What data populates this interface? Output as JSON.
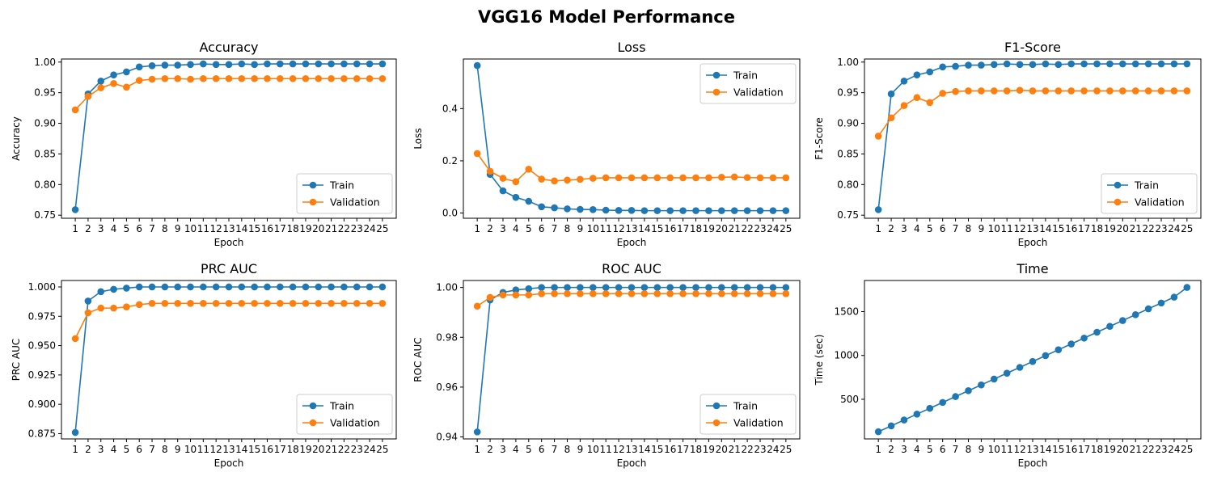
{
  "title": "VGG16 Model Performance",
  "colors": {
    "train": "#1f77b4",
    "validation": "#ff7f0e",
    "axis": "#000000"
  },
  "chart_data": [
    {
      "type": "line",
      "title": "Accuracy",
      "xlabel": "Epoch",
      "ylabel": "Accuracy",
      "x": [
        1,
        2,
        3,
        4,
        5,
        6,
        7,
        8,
        9,
        10,
        11,
        12,
        13,
        14,
        15,
        16,
        17,
        18,
        19,
        20,
        21,
        22,
        23,
        24,
        25
      ],
      "ylim": [
        0.745,
        1.005
      ],
      "yticks": [
        "0.75",
        "0.80",
        "0.85",
        "0.90",
        "0.95",
        "1.00"
      ],
      "legend": "lower-right",
      "series": [
        {
          "name": "Train",
          "color": "#1f77b4",
          "values": [
            0.759,
            0.948,
            0.969,
            0.979,
            0.984,
            0.992,
            0.994,
            0.995,
            0.995,
            0.996,
            0.997,
            0.996,
            0.996,
            0.997,
            0.996,
            0.997,
            0.997,
            0.997,
            0.997,
            0.997,
            0.997,
            0.997,
            0.997,
            0.997,
            0.997
          ]
        },
        {
          "name": "Validation",
          "color": "#ff7f0e",
          "values": [
            0.922,
            0.944,
            0.958,
            0.965,
            0.959,
            0.97,
            0.972,
            0.973,
            0.973,
            0.972,
            0.973,
            0.973,
            0.973,
            0.973,
            0.973,
            0.973,
            0.973,
            0.973,
            0.973,
            0.973,
            0.973,
            0.973,
            0.973,
            0.973,
            0.973
          ]
        }
      ]
    },
    {
      "type": "line",
      "title": "Loss",
      "xlabel": "Epoch",
      "ylabel": "Loss",
      "x": [
        1,
        2,
        3,
        4,
        5,
        6,
        7,
        8,
        9,
        10,
        11,
        12,
        13,
        14,
        15,
        16,
        17,
        18,
        19,
        20,
        21,
        22,
        23,
        24,
        25
      ],
      "ylim": [
        -0.02,
        0.59
      ],
      "yticks": [
        "0.0",
        "0.2",
        "0.4"
      ],
      "legend": "upper-right",
      "series": [
        {
          "name": "Train",
          "color": "#1f77b4",
          "values": [
            0.565,
            0.148,
            0.085,
            0.06,
            0.045,
            0.024,
            0.02,
            0.016,
            0.014,
            0.013,
            0.011,
            0.01,
            0.01,
            0.009,
            0.009,
            0.009,
            0.009,
            0.009,
            0.009,
            0.009,
            0.009,
            0.009,
            0.009,
            0.009,
            0.009
          ]
        },
        {
          "name": "Validation",
          "color": "#ff7f0e",
          "values": [
            0.228,
            0.16,
            0.133,
            0.12,
            0.168,
            0.13,
            0.123,
            0.126,
            0.129,
            0.133,
            0.135,
            0.135,
            0.135,
            0.135,
            0.135,
            0.135,
            0.135,
            0.135,
            0.135,
            0.137,
            0.138,
            0.136,
            0.135,
            0.135,
            0.135
          ]
        }
      ]
    },
    {
      "type": "line",
      "title": "F1-Score",
      "xlabel": "Epoch",
      "ylabel": "F1-Score",
      "x": [
        1,
        2,
        3,
        4,
        5,
        6,
        7,
        8,
        9,
        10,
        11,
        12,
        13,
        14,
        15,
        16,
        17,
        18,
        19,
        20,
        21,
        22,
        23,
        24,
        25
      ],
      "ylim": [
        0.745,
        1.005
      ],
      "yticks": [
        "0.75",
        "0.80",
        "0.85",
        "0.90",
        "0.95",
        "1.00"
      ],
      "legend": "lower-right",
      "series": [
        {
          "name": "Train",
          "color": "#1f77b4",
          "values": [
            0.759,
            0.948,
            0.969,
            0.979,
            0.984,
            0.992,
            0.993,
            0.995,
            0.995,
            0.996,
            0.997,
            0.996,
            0.996,
            0.997,
            0.996,
            0.997,
            0.997,
            0.997,
            0.997,
            0.997,
            0.997,
            0.997,
            0.997,
            0.997,
            0.997
          ]
        },
        {
          "name": "Validation",
          "color": "#ff7f0e",
          "values": [
            0.879,
            0.909,
            0.929,
            0.942,
            0.934,
            0.949,
            0.952,
            0.953,
            0.953,
            0.953,
            0.953,
            0.954,
            0.953,
            0.953,
            0.953,
            0.953,
            0.953,
            0.953,
            0.953,
            0.953,
            0.953,
            0.953,
            0.953,
            0.953,
            0.953
          ]
        }
      ]
    },
    {
      "type": "line",
      "title": "PRC AUC",
      "xlabel": "Epoch",
      "ylabel": "PRC AUC",
      "x": [
        1,
        2,
        3,
        4,
        5,
        6,
        7,
        8,
        9,
        10,
        11,
        12,
        13,
        14,
        15,
        16,
        17,
        18,
        19,
        20,
        21,
        22,
        23,
        24,
        25
      ],
      "ylim": [
        0.8705,
        1.0055
      ],
      "yticks": [
        "0.875",
        "0.900",
        "0.925",
        "0.950",
        "0.975",
        "1.000"
      ],
      "legend": "lower-right",
      "series": [
        {
          "name": "Train",
          "color": "#1f77b4",
          "values": [
            0.876,
            0.988,
            0.996,
            0.998,
            0.999,
            1.0,
            1.0,
            1.0,
            1.0,
            1.0,
            1.0,
            1.0,
            1.0,
            1.0,
            1.0,
            1.0,
            1.0,
            1.0,
            1.0,
            1.0,
            1.0,
            1.0,
            1.0,
            1.0,
            1.0
          ]
        },
        {
          "name": "Validation",
          "color": "#ff7f0e",
          "values": [
            0.956,
            0.978,
            0.982,
            0.982,
            0.983,
            0.985,
            0.986,
            0.986,
            0.986,
            0.986,
            0.986,
            0.986,
            0.986,
            0.986,
            0.986,
            0.986,
            0.986,
            0.986,
            0.986,
            0.986,
            0.986,
            0.986,
            0.986,
            0.986,
            0.986
          ]
        }
      ]
    },
    {
      "type": "line",
      "title": "ROC AUC",
      "xlabel": "Epoch",
      "ylabel": "ROC AUC",
      "x": [
        1,
        2,
        3,
        4,
        5,
        6,
        7,
        8,
        9,
        10,
        11,
        12,
        13,
        14,
        15,
        16,
        17,
        18,
        19,
        20,
        21,
        22,
        23,
        24,
        25
      ],
      "ylim": [
        0.9392,
        1.0028
      ],
      "yticks": [
        "0.94",
        "0.96",
        "0.98",
        "1.00"
      ],
      "legend": "lower-right",
      "series": [
        {
          "name": "Train",
          "color": "#1f77b4",
          "values": [
            0.942,
            0.995,
            0.998,
            0.999,
            0.9995,
            1.0,
            1.0,
            1.0,
            1.0,
            1.0,
            1.0,
            1.0,
            1.0,
            1.0,
            1.0,
            1.0,
            1.0,
            1.0,
            1.0,
            1.0,
            1.0,
            1.0,
            1.0,
            1.0,
            1.0
          ]
        },
        {
          "name": "Validation",
          "color": "#ff7f0e",
          "values": [
            0.9925,
            0.996,
            0.997,
            0.997,
            0.997,
            0.9975,
            0.9975,
            0.9975,
            0.9975,
            0.9975,
            0.9975,
            0.9975,
            0.9975,
            0.9975,
            0.9975,
            0.9975,
            0.9975,
            0.9975,
            0.9975,
            0.9975,
            0.9975,
            0.9975,
            0.9975,
            0.9975,
            0.9975
          ]
        }
      ]
    },
    {
      "type": "line",
      "title": "Time",
      "xlabel": "Epoch",
      "ylabel": "Time (sec)",
      "x": [
        1,
        2,
        3,
        4,
        5,
        6,
        7,
        8,
        9,
        10,
        11,
        12,
        13,
        14,
        15,
        16,
        17,
        18,
        19,
        20,
        21,
        22,
        23,
        24,
        25
      ],
      "ylim": [
        48,
        1855
      ],
      "yticks": [
        "500",
        "1000",
        "1500"
      ],
      "legend": "none",
      "series": [
        {
          "name": "",
          "color": "#1f77b4",
          "values": [
            130,
            197,
            264,
            331,
            397,
            464,
            531,
            598,
            664,
            731,
            798,
            864,
            931,
            998,
            1065,
            1131,
            1198,
            1265,
            1332,
            1398,
            1465,
            1532,
            1598,
            1665,
            1776
          ]
        }
      ]
    }
  ]
}
